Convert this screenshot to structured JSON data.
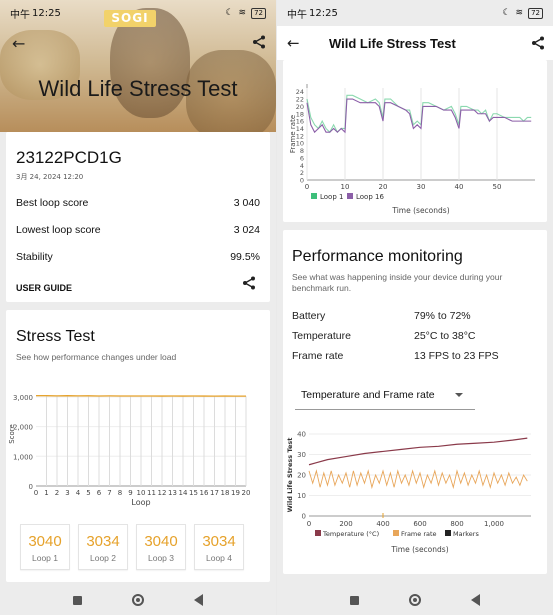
{
  "status_bar": {
    "carrier": "中午",
    "time": "12:25",
    "battery": "72"
  },
  "left": {
    "logo": "SOGI",
    "hero_title": "Wild Life Stress Test",
    "device_name": "23122PCD1G",
    "device_date": "3月 24, 2024 12:20",
    "best_label": "Best loop score",
    "best_value": "3 040",
    "lowest_label": "Lowest loop score",
    "lowest_value": "3 024",
    "stability_label": "Stability",
    "stability_value": "99.5%",
    "guide_label": "USER GUIDE",
    "stress_title": "Stress Test",
    "stress_sub": "See how performance changes under load",
    "loops": [
      {
        "value": "3040",
        "label": "Loop 1"
      },
      {
        "value": "3034",
        "label": "Loop 2"
      },
      {
        "value": "3040",
        "label": "Loop 3"
      },
      {
        "value": "3034",
        "label": "Loop 4"
      }
    ]
  },
  "right": {
    "header_title": "Wild Life Stress Test",
    "perf_title": "Performance monitoring",
    "perf_sub": "See what was happening inside your device during your benchmark run.",
    "battery_label": "Battery",
    "battery_value": "79% to 72%",
    "temp_label": "Temperature",
    "temp_value": "25°C to 38°C",
    "fr_label": "Frame rate",
    "fr_value": "13 FPS to 23 FPS",
    "select_value": "Temperature and Frame rate"
  },
  "colors": {
    "accent": "#e6a22b",
    "loop1": "#3dbf7a",
    "loop16": "#8c5fa8",
    "temperature": "#8a3a4a",
    "framerate": "#e8a65a"
  },
  "chart_data": [
    {
      "type": "bar",
      "title": "",
      "xlabel": "Loop",
      "ylabel": "Score",
      "categories": [
        "1",
        "2",
        "3",
        "4",
        "5",
        "6",
        "7",
        "8",
        "9",
        "10",
        "11",
        "12",
        "13",
        "14",
        "15",
        "16",
        "17",
        "18",
        "19",
        "20"
      ],
      "values": [
        3040,
        3034,
        3040,
        3034,
        3035,
        3030,
        3032,
        3030,
        3028,
        3030,
        3029,
        3027,
        3030,
        3026,
        3028,
        3027,
        3025,
        3026,
        3024,
        3025
      ],
      "ylim": [
        0,
        3500
      ],
      "yticks": [
        "0",
        "1,000",
        "2,000",
        "3,000"
      ],
      "xticks": [
        "0",
        "1",
        "2",
        "3",
        "4",
        "5",
        "6",
        "7",
        "8",
        "9",
        "10",
        "11",
        "12",
        "13",
        "14",
        "15",
        "16",
        "17",
        "18",
        "19",
        "20"
      ]
    },
    {
      "type": "line",
      "xlabel": "Time (seconds)",
      "ylabel": "Frame rate",
      "xlim": [
        0,
        60
      ],
      "ylim": [
        0,
        25
      ],
      "xticks": [
        "0",
        "10",
        "20",
        "30",
        "40",
        "50"
      ],
      "yticks": [
        "0",
        "2",
        "4",
        "6",
        "8",
        "10",
        "12",
        "14",
        "16",
        "18",
        "20",
        "22",
        "24"
      ],
      "series": [
        {
          "name": "Loop 1",
          "x": [
            0,
            1,
            2,
            3,
            4,
            5,
            6,
            7,
            8,
            9,
            10,
            10.5,
            12,
            14,
            16,
            18,
            19,
            20,
            20.5,
            22,
            24,
            26,
            27,
            28,
            29,
            30,
            30.5,
            32,
            34,
            36,
            38,
            39,
            40,
            40.5,
            42,
            44,
            45,
            46,
            47,
            48,
            49,
            50,
            52,
            54,
            56,
            57,
            58,
            59
          ],
          "y": [
            22,
            17,
            15,
            14,
            16,
            14,
            13,
            15,
            13,
            14,
            14,
            23,
            23,
            22,
            21,
            22,
            21,
            17,
            22,
            22,
            20,
            19,
            19,
            15,
            16,
            15,
            21,
            21,
            20,
            19,
            20,
            18,
            15,
            20,
            20,
            19,
            19,
            18,
            19,
            16,
            18,
            18,
            17,
            17,
            17,
            16,
            17,
            17
          ]
        },
        {
          "name": "Loop 16",
          "x": [
            0,
            1,
            2,
            3,
            4,
            5,
            6,
            7,
            8,
            9,
            10,
            10.5,
            12,
            14,
            16,
            18,
            19,
            20,
            20.5,
            22,
            24,
            26,
            27,
            28,
            29,
            30,
            30.5,
            32,
            34,
            36,
            38,
            39,
            40,
            40.5,
            42,
            44,
            45,
            46,
            47,
            48,
            49,
            50,
            52,
            54,
            56,
            57,
            58,
            59
          ],
          "y": [
            21,
            15,
            13,
            14,
            15,
            13,
            13,
            14,
            13,
            14,
            13,
            22,
            22,
            21,
            21,
            21,
            20,
            16,
            21,
            21,
            20,
            19,
            18,
            14,
            15,
            14,
            20,
            20,
            20,
            19,
            19,
            17,
            14,
            19,
            19,
            19,
            18,
            18,
            18,
            16,
            17,
            17,
            17,
            16,
            16,
            16,
            16,
            16
          ]
        }
      ]
    },
    {
      "type": "line",
      "xlabel": "Time (seconds)",
      "ylabel": "Wild Life Stress Test",
      "xlim": [
        0,
        1200
      ],
      "ylim": [
        0,
        40
      ],
      "xticks": [
        "0",
        "200",
        "400",
        "600",
        "800",
        "1,000"
      ],
      "yticks": [
        "0",
        "10",
        "20",
        "30",
        "40"
      ],
      "series": [
        {
          "name": "Temperature (°C)",
          "x": [
            0,
            40,
            100,
            200,
            300,
            400,
            500,
            600,
            700,
            800,
            900,
            1000,
            1100,
            1180
          ],
          "y": [
            25,
            26,
            27.5,
            29,
            30.5,
            31.5,
            32.5,
            33.5,
            34,
            35,
            35.5,
            36,
            37,
            38
          ]
        },
        {
          "name": "Frame rate",
          "x": [
            0,
            20,
            40,
            60,
            80,
            100,
            120,
            140,
            160,
            180,
            200,
            220,
            240,
            260,
            280,
            300,
            320,
            340,
            360,
            380,
            400,
            420,
            440,
            460,
            480,
            500,
            520,
            540,
            560,
            580,
            600,
            620,
            640,
            660,
            680,
            700,
            720,
            740,
            760,
            780,
            800,
            820,
            840,
            860,
            880,
            900,
            920,
            940,
            960,
            980,
            1000,
            1020,
            1040,
            1060,
            1080,
            1100,
            1120,
            1140,
            1160,
            1180
          ],
          "y": [
            22,
            16,
            22,
            14,
            21,
            15,
            22,
            15,
            20,
            16,
            21,
            14,
            22,
            15,
            21,
            16,
            22,
            14,
            20,
            16,
            22,
            15,
            21,
            14,
            22,
            16,
            20,
            15,
            22,
            16,
            21,
            14,
            20,
            16,
            22,
            15,
            21,
            16,
            20,
            14,
            22,
            16,
            21,
            15,
            20,
            16,
            22,
            15,
            20,
            14,
            21,
            16,
            20,
            15,
            21,
            16,
            19,
            15,
            20,
            17
          ]
        }
      ],
      "markers_label": "Markers"
    }
  ]
}
